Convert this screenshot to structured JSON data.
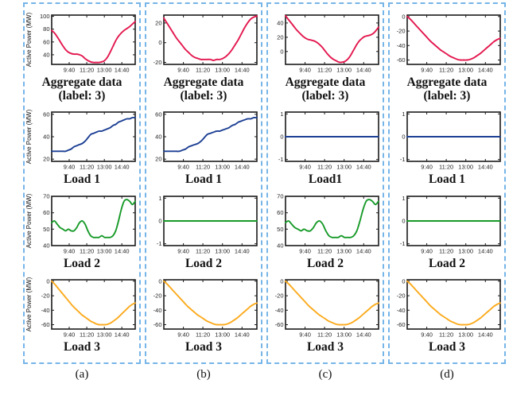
{
  "colors": {
    "red": "#e3174e",
    "blue": "#1c3f93",
    "green": "#179a28",
    "orange": "#fcab1e",
    "axis": "#1a1a1a",
    "dashed_border": "#76b5e8",
    "tick_text": "#222222"
  },
  "chart_data": {
    "type": "line",
    "ylabel": "Active Power (MW)",
    "x_tick_labels": [
      "9:40",
      "11:20",
      "13:00",
      "14:40"
    ],
    "x_tick_positions": [
      0.21,
      0.42,
      0.63,
      0.84
    ],
    "grid": false,
    "legend": "none",
    "columns": [
      {
        "label": "(a)",
        "show_ylabel": true,
        "plots": [
          {
            "name": "aggregate-data-a",
            "title_lines": [
              "Aggregate data",
              "(label: 3)"
            ],
            "color": "red",
            "ylim": [
              25,
              102
            ],
            "yticks": [
              40,
              60,
              80,
              100
            ],
            "values": [
              78,
              74,
              68,
              61,
              54,
              48,
              44,
              42,
              41,
              41,
              40,
              38,
              34,
              31,
              29,
              28,
              28,
              28,
              29,
              31,
              36,
              44,
              53,
              62,
              69,
              74,
              78,
              81,
              84,
              88,
              92
            ]
          },
          {
            "name": "load1-a",
            "title_lines": [
              "Load 1"
            ],
            "color": "blue",
            "ylim": [
              18,
              62
            ],
            "yticks": [
              20,
              40,
              60
            ],
            "values": [
              27,
              27,
              27,
              27,
              27,
              27,
              28,
              29,
              31,
              32,
              33,
              34,
              36,
              39,
              42,
              43,
              44,
              45,
              45,
              46,
              47,
              48,
              50,
              51,
              53,
              54,
              55,
              56,
              56,
              57,
              57
            ]
          },
          {
            "name": "load2-a",
            "title_lines": [
              "Load 2"
            ],
            "color": "green",
            "ylim": [
              40,
              70
            ],
            "yticks": [
              40,
              50,
              60,
              70
            ],
            "values": [
              54,
              55,
              53,
              51,
              50,
              49,
              50,
              49,
              49,
              51,
              54,
              55,
              53,
              49,
              46,
              45,
              45,
              45,
              46,
              45,
              45,
              45,
              46,
              49,
              55,
              62,
              67,
              68,
              67,
              65,
              67
            ]
          },
          {
            "name": "load3-a",
            "title_lines": [
              "Load 3"
            ],
            "color": "orange",
            "ylim": [
              -66,
              2
            ],
            "yticks": [
              -60,
              -40,
              -20,
              0
            ],
            "values": [
              0,
              -4,
              -9,
              -14,
              -19,
              -24,
              -29,
              -34,
              -38,
              -42,
              -46,
              -49,
              -52,
              -55,
              -57,
              -59,
              -60,
              -60,
              -60,
              -59,
              -57,
              -54,
              -51,
              -47,
              -43,
              -39,
              -35,
              -32,
              -30
            ]
          }
        ]
      },
      {
        "label": "(b)",
        "show_ylabel": false,
        "plots": [
          {
            "name": "aggregate-data-b",
            "title_lines": [
              "Aggregate data",
              "(label: 3)"
            ],
            "color": "red",
            "ylim": [
              -22,
              28
            ],
            "yticks": [
              -20,
              0,
              20
            ],
            "values": [
              25,
              20,
              15,
              10,
              5,
              1,
              -3,
              -7,
              -10,
              -13,
              -15,
              -16,
              -17,
              -17,
              -17,
              -17,
              -18,
              -17,
              -17,
              -16,
              -14,
              -11,
              -7,
              -2,
              3,
              9,
              15,
              20,
              24,
              26,
              27
            ]
          },
          {
            "name": "load1-b",
            "title_lines": [
              "Load 1"
            ],
            "color": "blue",
            "ylim": [
              18,
              62
            ],
            "yticks": [
              20,
              40,
              60
            ],
            "values": [
              27,
              27,
              27,
              27,
              27,
              27,
              28,
              29,
              31,
              32,
              33,
              34,
              36,
              39,
              42,
              43,
              44,
              45,
              45,
              46,
              47,
              48,
              50,
              51,
              53,
              54,
              55,
              56,
              56,
              57,
              57
            ]
          },
          {
            "name": "load2-b",
            "title_lines": [
              "Load 2"
            ],
            "color": "green",
            "ylim": [
              -1.08,
              1.08
            ],
            "yticks": [
              -1,
              0,
              1
            ],
            "values": [
              0,
              0
            ]
          },
          {
            "name": "load3-b",
            "title_lines": [
              "Load 3"
            ],
            "color": "orange",
            "ylim": [
              -66,
              2
            ],
            "yticks": [
              -60,
              -40,
              -20,
              0
            ],
            "values": [
              0,
              -4,
              -9,
              -14,
              -19,
              -24,
              -29,
              -34,
              -38,
              -42,
              -46,
              -49,
              -52,
              -55,
              -57,
              -59,
              -60,
              -60,
              -60,
              -59,
              -57,
              -54,
              -51,
              -47,
              -43,
              -39,
              -35,
              -32,
              -30
            ]
          }
        ]
      },
      {
        "label": "(c)",
        "show_ylabel": false,
        "plots": [
          {
            "name": "aggregate-data-c",
            "title_lines": [
              "Aggregate data",
              "(label: 3)"
            ],
            "color": "red",
            "ylim": [
              -18,
              51
            ],
            "yticks": [
              0,
              20,
              40
            ],
            "values": [
              50,
              45,
              40,
              35,
              30,
              26,
              22,
              19,
              17,
              16,
              15,
              13,
              10,
              6,
              1,
              -4,
              -8,
              -11,
              -13,
              -15,
              -15,
              -14,
              -11,
              -6,
              1,
              8,
              14,
              18,
              21,
              22,
              23,
              25,
              29,
              34
            ]
          },
          {
            "name": "load1-c",
            "title_lines": [
              "Load1"
            ],
            "color": "blue",
            "ylim": [
              -1.08,
              1.08
            ],
            "yticks": [
              -1,
              0,
              1
            ],
            "values": [
              0,
              0
            ]
          },
          {
            "name": "load2-c",
            "title_lines": [
              "Load 2"
            ],
            "color": "green",
            "ylim": [
              40,
              70
            ],
            "yticks": [
              40,
              50,
              60,
              70
            ],
            "values": [
              54,
              55,
              53,
              51,
              50,
              49,
              50,
              49,
              49,
              51,
              54,
              55,
              53,
              49,
              46,
              45,
              45,
              45,
              46,
              45,
              45,
              45,
              46,
              49,
              55,
              62,
              67,
              68,
              67,
              65,
              67
            ]
          },
          {
            "name": "load3-c",
            "title_lines": [
              "Load 3"
            ],
            "color": "orange",
            "ylim": [
              -66,
              2
            ],
            "yticks": [
              -60,
              -40,
              -20,
              0
            ],
            "values": [
              0,
              -4,
              -9,
              -14,
              -19,
              -24,
              -29,
              -34,
              -38,
              -42,
              -46,
              -49,
              -52,
              -55,
              -57,
              -59,
              -60,
              -60,
              -60,
              -59,
              -57,
              -54,
              -51,
              -47,
              -43,
              -39,
              -35,
              -32,
              -30
            ]
          }
        ]
      },
      {
        "label": "(d)",
        "show_ylabel": false,
        "plots": [
          {
            "name": "aggregate-data-d",
            "title_lines": [
              "Aggregate data",
              "(label: 3)"
            ],
            "color": "red",
            "ylim": [
              -66,
              2
            ],
            "yticks": [
              -60,
              -40,
              -20,
              0
            ],
            "values": [
              0,
              -4,
              -9,
              -14,
              -19,
              -24,
              -29,
              -34,
              -38,
              -42,
              -46,
              -49,
              -52,
              -55,
              -57,
              -59,
              -60,
              -60,
              -60,
              -59,
              -57,
              -54,
              -51,
              -47,
              -43,
              -39,
              -35,
              -32,
              -30
            ]
          },
          {
            "name": "load1-d",
            "title_lines": [
              "Load 1"
            ],
            "color": "blue",
            "ylim": [
              -1.08,
              1.08
            ],
            "yticks": [
              -1,
              0,
              1
            ],
            "values": [
              0,
              0
            ]
          },
          {
            "name": "load2-d",
            "title_lines": [
              "Load 2"
            ],
            "color": "green",
            "ylim": [
              -1.08,
              1.08
            ],
            "yticks": [
              -1,
              0,
              1
            ],
            "values": [
              0,
              0
            ]
          },
          {
            "name": "load3-d",
            "title_lines": [
              "Load 3"
            ],
            "color": "orange",
            "ylim": [
              -66,
              2
            ],
            "yticks": [
              -60,
              -40,
              -20,
              0
            ],
            "values": [
              0,
              -4,
              -9,
              -14,
              -19,
              -24,
              -29,
              -34,
              -38,
              -42,
              -46,
              -49,
              -52,
              -55,
              -57,
              -59,
              -60,
              -60,
              -60,
              -59,
              -57,
              -54,
              -51,
              -47,
              -43,
              -39,
              -35,
              -32,
              -30
            ]
          }
        ]
      }
    ]
  }
}
